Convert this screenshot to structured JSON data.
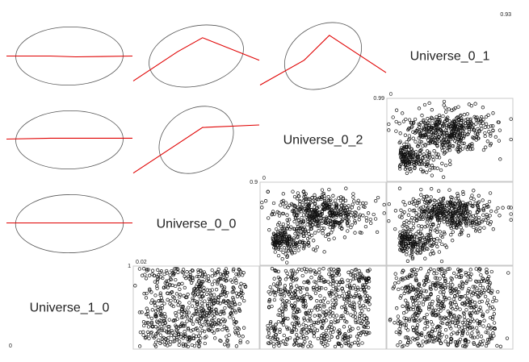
{
  "chart_data": {
    "type": "scatter",
    "subtype": "scatterplot-matrix",
    "variables": [
      "Universe_1_0",
      "Universe_0_0",
      "Universe_0_2",
      "Universe_0_1"
    ],
    "diagonal_labels": [
      {
        "var": "Universe_1_0",
        "min": "0",
        "max": "1"
      },
      {
        "var": "Universe_0_0",
        "min": "0.02",
        "max": "0.9"
      },
      {
        "var": "Universe_0_2",
        "min": "0",
        "max": "0.99"
      },
      {
        "var": "Universe_0_1",
        "min": "0",
        "max": "0.93"
      }
    ],
    "lower_panels": "scatter (n ≈ 3000 points, open circles)",
    "upper_panels": "correlation ellipse with red loess smoother",
    "ellipse_params": [
      {
        "row": 0,
        "col": 1,
        "corr": 0.02,
        "loess_y": [
          0.5,
          0.5,
          0.49,
          0.5
        ]
      },
      {
        "row": 0,
        "col": 2,
        "corr": 0.25,
        "loess_y": [
          0.2,
          0.55,
          0.72,
          0.45
        ]
      },
      {
        "row": 0,
        "col": 3,
        "corr": 0.55,
        "loess_y": [
          0.15,
          0.45,
          0.75,
          0.3
        ]
      },
      {
        "row": 1,
        "col": 2,
        "corr": 0.02,
        "loess_y": [
          0.51,
          0.52,
          0.52,
          0.52
        ]
      },
      {
        "row": 1,
        "col": 3,
        "corr": 0.6,
        "loess_y": [
          0.1,
          0.45,
          0.65,
          0.68
        ]
      },
      {
        "row": 2,
        "col": 3,
        "corr": 0.01,
        "loess_y": [
          0.51,
          0.51,
          0.51,
          0.51
        ]
      }
    ],
    "grid": false,
    "legend": "none"
  }
}
